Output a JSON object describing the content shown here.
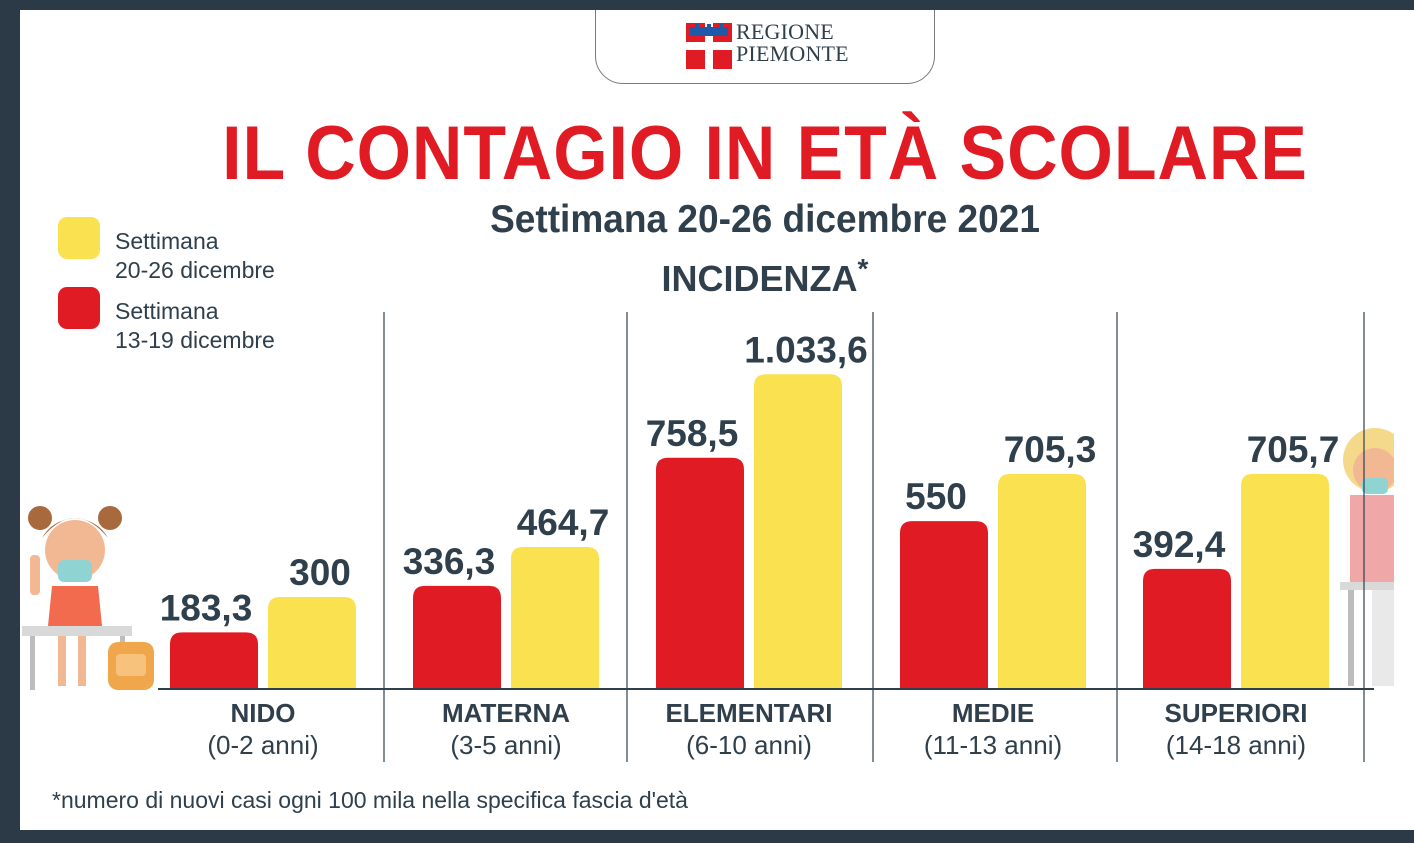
{
  "header": {
    "logo_line1": "REGIONE",
    "logo_line2": "PIEMONTE"
  },
  "legend": [
    {
      "line1": "Settimana",
      "line2": "20-26 dicembre",
      "color": "#f9e150"
    },
    {
      "line1": "Settimana",
      "line2": "13-19 dicembre",
      "color": "#e01b24"
    }
  ],
  "footnote": "*numero di nuovi casi ogni 100 mila nella specifica fascia d'età",
  "colors": {
    "red": "#e01b24",
    "yellow": "#f9e150",
    "text": "#2f3f4b",
    "background": "#2b3a46"
  },
  "chart_data": {
    "type": "bar",
    "title": "IL CONTAGIO IN ETÀ SCOLARE",
    "subtitle": "Settimana 20-26 dicembre 2021",
    "ylabel": "INCIDENZA",
    "ylabel_mark": "*",
    "categories": [
      {
        "name": "NIDO",
        "range": "(0-2 anni)"
      },
      {
        "name": "MATERNA",
        "range": "(3-5 anni)"
      },
      {
        "name": "ELEMENTARI",
        "range": "(6-10 anni)"
      },
      {
        "name": "MEDIE",
        "range": "(11-13 anni)"
      },
      {
        "name": "SUPERIORI",
        "range": "(14-18 anni)"
      }
    ],
    "series": [
      {
        "name": "Settimana 13-19 dicembre",
        "color": "#e01b24",
        "values": [
          183.3,
          336.3,
          758.5,
          550,
          392.4
        ],
        "labels": [
          "183,3",
          "336,3",
          "758,5",
          "550",
          "392,4"
        ]
      },
      {
        "name": "Settimana 20-26 dicembre",
        "color": "#f9e150",
        "values": [
          300,
          464.7,
          1033.6,
          705.3,
          705.7
        ],
        "labels": [
          "300",
          "464,7",
          "1.033,6",
          "705,3",
          "705,7"
        ]
      }
    ],
    "legend_position": "top-left",
    "grid": false
  }
}
